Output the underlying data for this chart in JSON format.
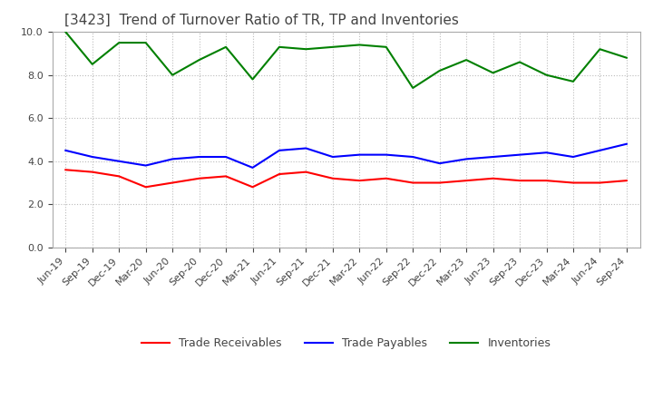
{
  "title": "[3423]  Trend of Turnover Ratio of TR, TP and Inventories",
  "x_labels": [
    "Jun-19",
    "Sep-19",
    "Dec-19",
    "Mar-20",
    "Jun-20",
    "Sep-20",
    "Dec-20",
    "Mar-21",
    "Jun-21",
    "Sep-21",
    "Dec-21",
    "Mar-22",
    "Jun-22",
    "Sep-22",
    "Dec-22",
    "Mar-23",
    "Jun-23",
    "Sep-23",
    "Dec-23",
    "Mar-24",
    "Jun-24",
    "Sep-24"
  ],
  "trade_receivables": [
    3.6,
    3.5,
    3.3,
    2.8,
    3.0,
    3.2,
    3.3,
    2.8,
    3.4,
    3.5,
    3.2,
    3.1,
    3.2,
    3.0,
    3.0,
    3.1,
    3.2,
    3.1,
    3.1,
    3.0,
    3.0,
    3.1
  ],
  "trade_payables": [
    4.5,
    4.2,
    4.0,
    3.8,
    4.1,
    4.2,
    4.2,
    3.7,
    4.5,
    4.6,
    4.2,
    4.3,
    4.3,
    4.2,
    3.9,
    4.1,
    4.2,
    4.3,
    4.4,
    4.2,
    4.5,
    4.8
  ],
  "inventories": [
    10.0,
    8.5,
    9.5,
    9.5,
    8.0,
    8.7,
    9.3,
    7.8,
    9.3,
    9.2,
    9.3,
    9.4,
    9.3,
    7.4,
    8.2,
    8.7,
    8.1,
    8.6,
    8.0,
    7.7,
    9.2,
    8.8
  ],
  "tr_color": "#ff0000",
  "tp_color": "#0000ff",
  "inv_color": "#008000",
  "tr_label": "Trade Receivables",
  "tp_label": "Trade Payables",
  "inv_label": "Inventories",
  "ylim": [
    0.0,
    10.0
  ],
  "yticks": [
    0.0,
    2.0,
    4.0,
    6.0,
    8.0,
    10.0
  ],
  "grid_color": "#bbbbbb",
  "background_color": "#ffffff",
  "title_fontsize": 11,
  "title_color": "#444444",
  "legend_fontsize": 9,
  "tick_fontsize": 8,
  "tick_color": "#444444",
  "line_width": 1.5
}
